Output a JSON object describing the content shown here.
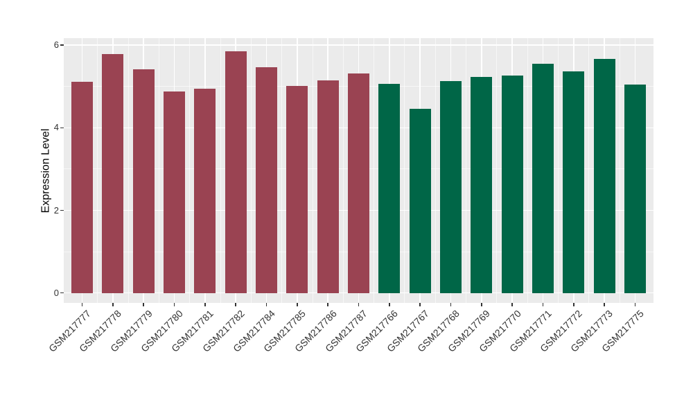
{
  "figure": {
    "background": "#FFFFFF",
    "panel_background": "#EBEBEB",
    "gridline_color": "#FFFFFF",
    "tick_color": "#333333",
    "axis_text_color": "#333333",
    "axis_title_color": "#000000"
  },
  "chart_data": {
    "type": "bar",
    "title": "",
    "xlabel": "",
    "ylabel": "Expression Level",
    "categories": [
      "GSM217777",
      "GSM217778",
      "GSM217779",
      "GSM217780",
      "GSM217781",
      "GSM217782",
      "GSM217784",
      "GSM217785",
      "GSM217786",
      "GSM217787",
      "GSM217766",
      "GSM217767",
      "GSM217768",
      "GSM217769",
      "GSM217770",
      "GSM217771",
      "GSM217772",
      "GSM217773",
      "GSM217775"
    ],
    "values": [
      5.11,
      5.78,
      5.42,
      4.88,
      4.94,
      5.85,
      5.46,
      5.02,
      5.14,
      5.31,
      5.06,
      4.46,
      5.13,
      5.23,
      5.27,
      5.55,
      5.36,
      5.66,
      5.04
    ],
    "bar_colors": [
      "#9A4352",
      "#9A4352",
      "#9A4352",
      "#9A4352",
      "#9A4352",
      "#9A4352",
      "#9A4352",
      "#9A4352",
      "#9A4352",
      "#9A4352",
      "#006647",
      "#006647",
      "#006647",
      "#006647",
      "#006647",
      "#006647",
      "#006647",
      "#006647",
      "#006647"
    ],
    "group_colors": {
      "left_group": "#9A4352",
      "right_group": "#006647"
    },
    "yticks": [
      0,
      2,
      4,
      6
    ],
    "ylim": [
      -0.24,
      6.17
    ],
    "grid": "white major and minor gridlines on gray panel",
    "legend": false,
    "bar_width_fraction": 0.7
  }
}
